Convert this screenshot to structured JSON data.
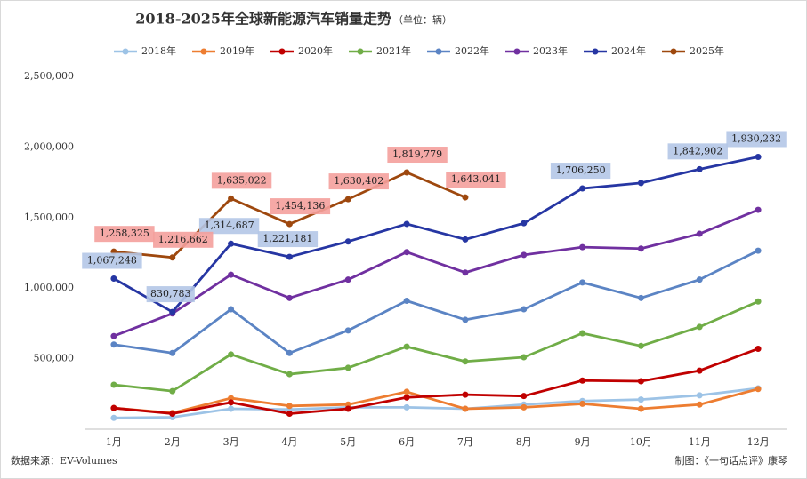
{
  "chart_data": {
    "type": "line",
    "title": "2018-2025年全球新能源汽车销量走势",
    "subtitle": "（单位：辆）",
    "source": "数据来源：EV-Volumes",
    "credit": "制图：《一句话点评》康琴",
    "categories": [
      "1月",
      "2月",
      "3月",
      "4月",
      "5月",
      "6月",
      "7月",
      "8月",
      "9月",
      "10月",
      "11月",
      "12月"
    ],
    "ylim": [
      0,
      2500000
    ],
    "yticks": [
      {
        "value": 500000,
        "label": "500,000"
      },
      {
        "value": 1000000,
        "label": "1,000,000"
      },
      {
        "value": 1500000,
        "label": "1,500,000"
      },
      {
        "value": 2000000,
        "label": "2,000,000"
      },
      {
        "value": 2500000,
        "label": "2,500,000"
      }
    ],
    "grid": false,
    "legend": "top",
    "series": [
      {
        "name": "2018年",
        "color": "#9dc3e6",
        "values": [
          80000,
          85000,
          145000,
          140000,
          155000,
          155000,
          145000,
          175000,
          200000,
          210000,
          240000,
          290000
        ]
      },
      {
        "name": "2019年",
        "color": "#ed7d31",
        "values": [
          150000,
          115000,
          220000,
          165000,
          175000,
          265000,
          145000,
          155000,
          180000,
          145000,
          175000,
          285000
        ]
      },
      {
        "name": "2020年",
        "color": "#c00000",
        "values": [
          150000,
          110000,
          190000,
          110000,
          145000,
          225000,
          245000,
          235000,
          345000,
          340000,
          415000,
          570000
        ]
      },
      {
        "name": "2021年",
        "color": "#70ad47",
        "values": [
          315000,
          270000,
          530000,
          390000,
          435000,
          585000,
          480000,
          510000,
          680000,
          590000,
          725000,
          905000
        ]
      },
      {
        "name": "2022年",
        "color": "#5b84c4",
        "values": [
          600000,
          540000,
          850000,
          540000,
          700000,
          910000,
          775000,
          850000,
          1040000,
          930000,
          1060000,
          1265000
        ]
      },
      {
        "name": "2023年",
        "color": "#7030a0",
        "values": [
          660000,
          820000,
          1095000,
          930000,
          1060000,
          1255000,
          1110000,
          1235000,
          1290000,
          1280000,
          1385000,
          1555000
        ]
      },
      {
        "name": "2024年",
        "color": "#2636a3",
        "label_bg": "#b4c7e7",
        "values": [
          1067248,
          830783,
          1314687,
          1221181,
          1330000,
          1455000,
          1345000,
          1460000,
          1706250,
          1745000,
          1842902,
          1930232
        ],
        "value_labels": [
          "1,067,248",
          "830,783",
          "1,314,687",
          "1,221,181",
          null,
          null,
          null,
          null,
          "1,706,250",
          null,
          "1,842,902",
          "1,930,232"
        ]
      },
      {
        "name": "2025年",
        "color": "#9e480e",
        "label_bg": "#f4a09c",
        "values": [
          1258325,
          1216662,
          1635022,
          1454136,
          1630402,
          1819779,
          1643041,
          null,
          null,
          null,
          null,
          null
        ],
        "value_labels": [
          "1,258,325",
          "1,216,662",
          "1,635,022",
          "1,454,136",
          "1,630,402",
          "1,819,779",
          "1,643,041",
          null,
          null,
          null,
          null,
          null
        ]
      }
    ]
  }
}
